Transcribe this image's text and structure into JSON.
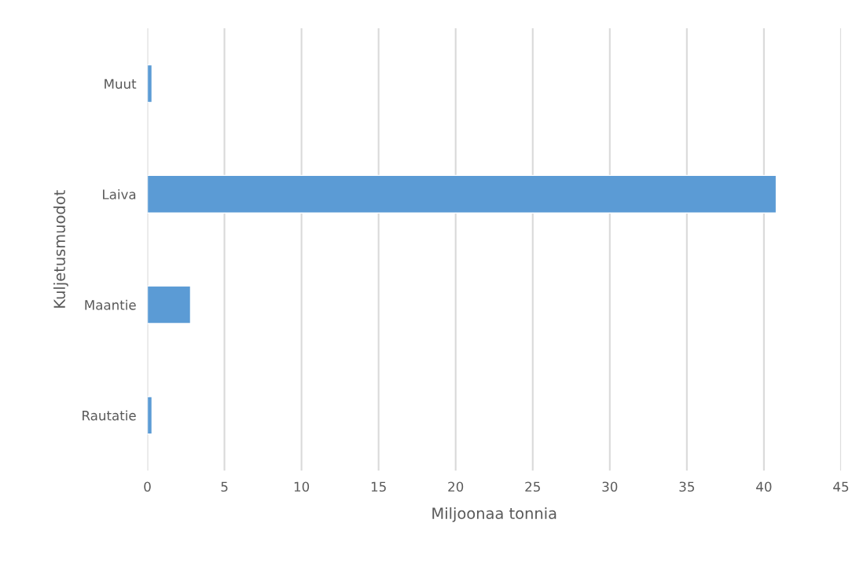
{
  "chart_data": {
    "type": "bar",
    "orientation": "horizontal",
    "categories": [
      "Muut",
      "Laiva",
      "Maantie",
      "Rautatie"
    ],
    "values": [
      0.3,
      40.8,
      2.8,
      0.3
    ],
    "color": "#5b9bd5",
    "xlabel": "Miljoonaa tonnia",
    "ylabel": "Kuljetusmuodot",
    "xlim": [
      0,
      45
    ],
    "xticks": [
      0,
      5,
      10,
      15,
      20,
      25,
      30,
      35,
      40,
      45
    ],
    "grid": "x",
    "legend": false
  }
}
